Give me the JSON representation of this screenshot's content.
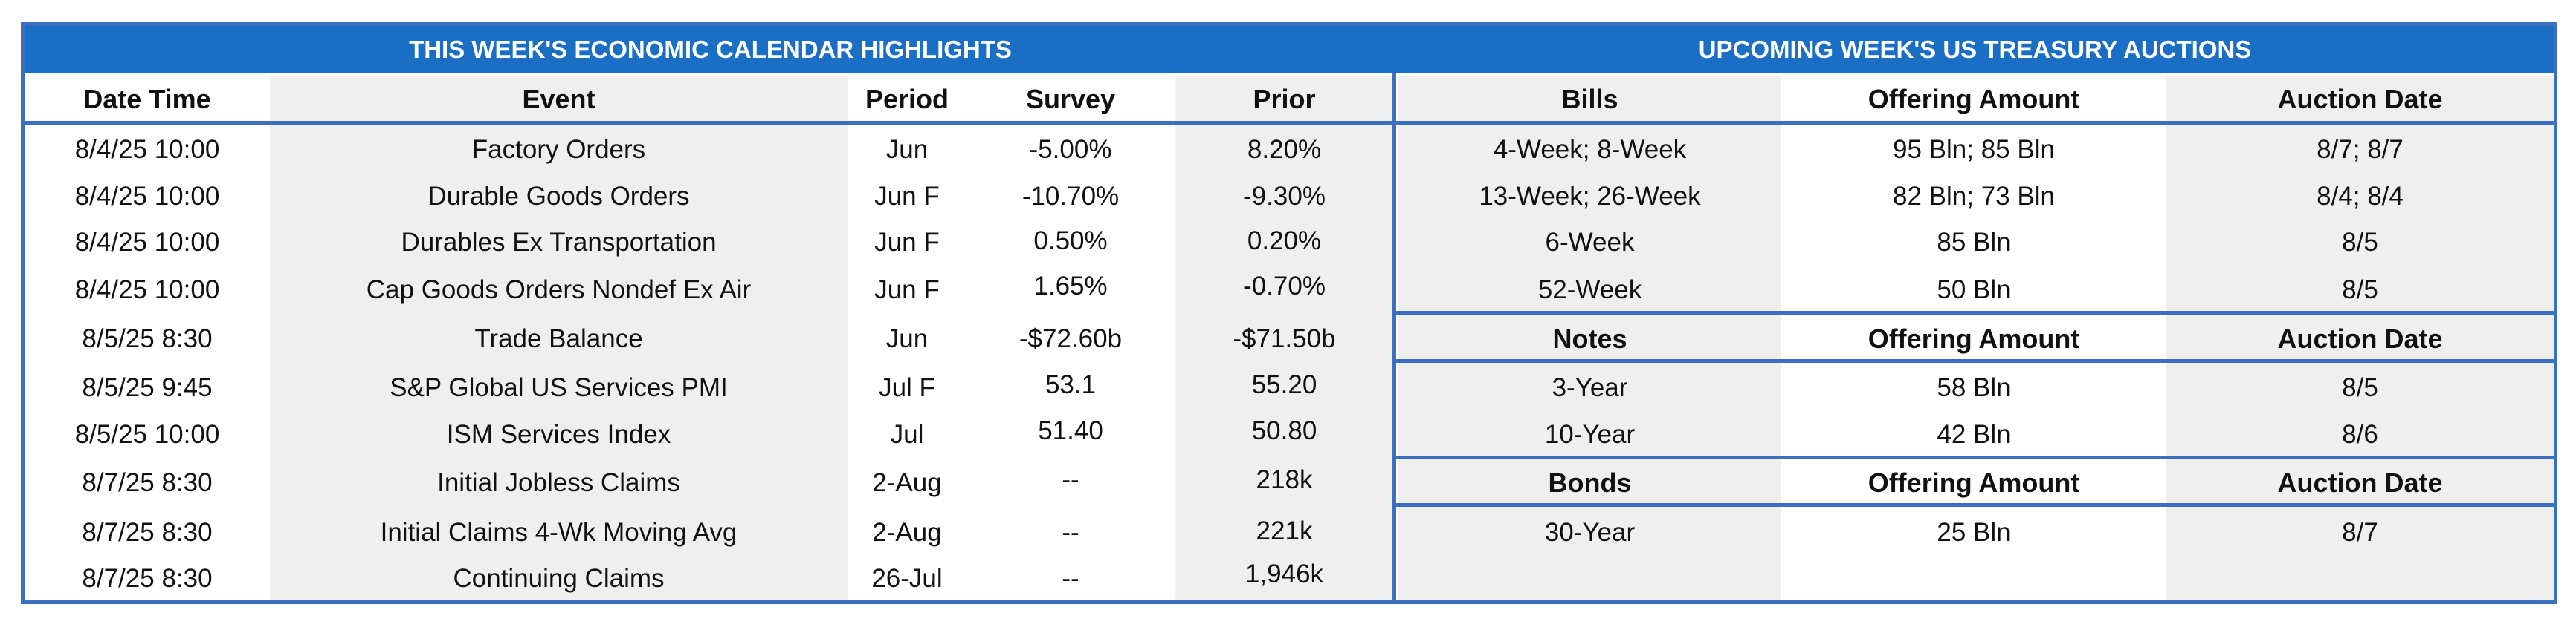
{
  "calendar": {
    "title": "THIS WEEK'S ECONOMIC CALENDAR HIGHLIGHTS",
    "headers": {
      "datetime": "Date Time",
      "event": "Event",
      "period": "Period",
      "survey": "Survey",
      "prior": "Prior"
    },
    "rows": [
      {
        "datetime": "8/4/25 10:00",
        "event": "Factory Orders",
        "period": "Jun",
        "survey": "-5.00%",
        "prior": "8.20%"
      },
      {
        "datetime": "8/4/25 10:00",
        "event": "Durable Goods Orders",
        "period": "Jun F",
        "survey": "-10.70%",
        "prior": "-9.30%"
      },
      {
        "datetime": "8/4/25 10:00",
        "event": "Durables Ex Transportation",
        "period": "Jun F",
        "survey": "0.50%",
        "prior": "0.20%"
      },
      {
        "datetime": "8/4/25 10:00",
        "event": "Cap Goods Orders Nondef Ex Air",
        "period": "Jun F",
        "survey": "1.65%",
        "prior": "-0.70%"
      },
      {
        "datetime": "8/5/25 8:30",
        "event": "Trade Balance",
        "period": "Jun",
        "survey": "-$72.60b",
        "prior": "-$71.50b"
      },
      {
        "datetime": "8/5/25 9:45",
        "event": "S&P Global US Services PMI",
        "period": "Jul F",
        "survey": "53.1",
        "prior": "55.20"
      },
      {
        "datetime": "8/5/25 10:00",
        "event": "ISM Services Index",
        "period": "Jul",
        "survey": "51.40",
        "prior": "50.80"
      },
      {
        "datetime": "8/7/25 8:30",
        "event": "Initial Jobless Claims",
        "period": "2-Aug",
        "survey": "--",
        "prior": "218k"
      },
      {
        "datetime": "8/7/25 8:30",
        "event": "Initial Claims 4-Wk Moving Avg",
        "period": "2-Aug",
        "survey": "--",
        "prior": "221k"
      },
      {
        "datetime": "8/7/25 8:30",
        "event": "Continuing Claims",
        "period": "26-Jul",
        "survey": "--",
        "prior": "1,946k"
      }
    ]
  },
  "auctions": {
    "title": "UPCOMING WEEK'S US TREASURY AUCTIONS",
    "bills": {
      "headers": {
        "name": "Bills",
        "amount": "Offering Amount",
        "date": "Auction Date"
      },
      "rows": [
        {
          "name": "4-Week; 8-Week",
          "amount": "95 Bln; 85 Bln",
          "date": "8/7; 8/7"
        },
        {
          "name": "13-Week; 26-Week",
          "amount": "82 Bln; 73 Bln",
          "date": "8/4; 8/4"
        },
        {
          "name": "6-Week",
          "amount": "85 Bln",
          "date": "8/5"
        },
        {
          "name": "52-Week",
          "amount": "50 Bln",
          "date": "8/5"
        }
      ]
    },
    "notes": {
      "headers": {
        "name": "Notes",
        "amount": "Offering Amount",
        "date": "Auction Date"
      },
      "rows": [
        {
          "name": "3-Year",
          "amount": "58 Bln",
          "date": "8/5"
        },
        {
          "name": "10-Year",
          "amount": "42 Bln",
          "date": "8/6"
        }
      ]
    },
    "bonds": {
      "headers": {
        "name": "Bonds",
        "amount": "Offering Amount",
        "date": "Auction Date"
      },
      "rows": [
        {
          "name": "30-Year",
          "amount": "25 Bln",
          "date": "8/7"
        }
      ]
    }
  },
  "colors": {
    "band": "#1a6fc4",
    "border": "#3c6fc0",
    "stripe": "#efefef"
  }
}
